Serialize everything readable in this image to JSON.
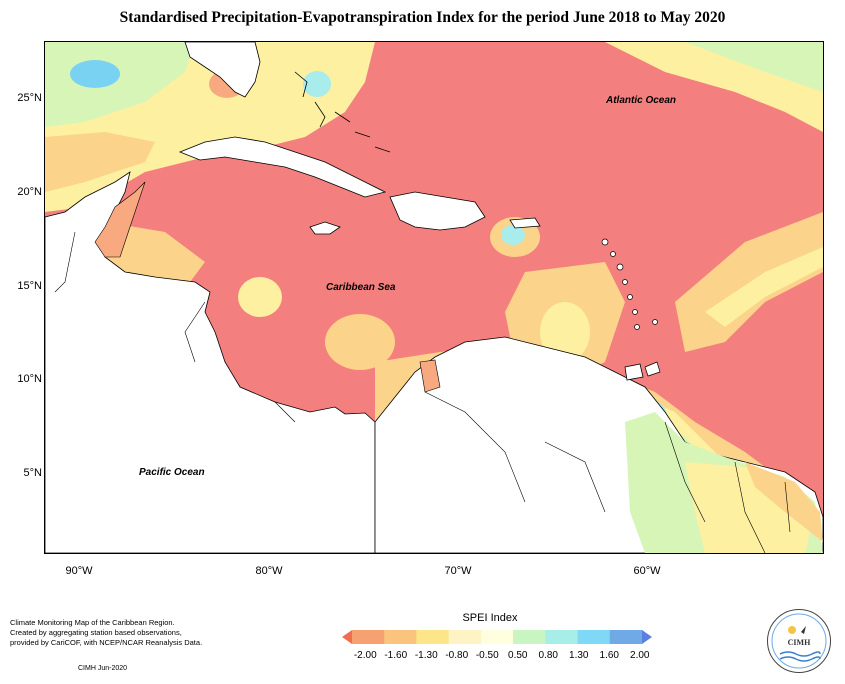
{
  "title": "Standardised Precipitation-Evapotranspiration Index for the period June 2018 to May 2020",
  "latitude_labels": [
    "25°N",
    "20°N",
    "15°N",
    "10°N",
    "5°N"
  ],
  "longitude_labels": [
    "90°W",
    "80°W",
    "70°W",
    "60°W"
  ],
  "places": {
    "atlantic": "Atlantic Ocean",
    "caribbean": "Caribbean Sea",
    "pacific": "Pacific Ocean"
  },
  "credits": {
    "line1": "Climate Monitoring Map of the Caribbean Region.",
    "line2": "Created by aggregating station based observations,",
    "line3": "provided by CariCOF, with NCEP/NCAR Reanalysis Data.",
    "date": "CIMH Jun-2020"
  },
  "legend": {
    "title": "SPEI Index",
    "ticks": [
      "-2.00",
      "-1.60",
      "-1.30",
      "-0.80",
      "-0.50",
      "0.50",
      "0.80",
      "1.30",
      "1.60",
      "2.00"
    ],
    "colors": [
      "#f26c4f",
      "#f7a072",
      "#fbc47c",
      "#fde68a",
      "#fdf3c4",
      "#ffffe0",
      "#c8f5c2",
      "#a8eee8",
      "#7fd8f5",
      "#6fa9e6",
      "#5a7fe0"
    ]
  },
  "logo": {
    "acronym": "CIMH"
  },
  "colors": {
    "extreme_dry": "#f47f7f",
    "moderate_dry": "#f8a980",
    "mild_dry": "#fbd38a",
    "near_normal_dry": "#fdf0a0",
    "normal": "#fffcd6",
    "mild_wet": "#d8f5b8",
    "wet": "#a8ecec",
    "very_wet": "#7ad2f2",
    "extreme_wet": "#7a8ef0",
    "land": "#ffffff",
    "border": "#000000"
  }
}
